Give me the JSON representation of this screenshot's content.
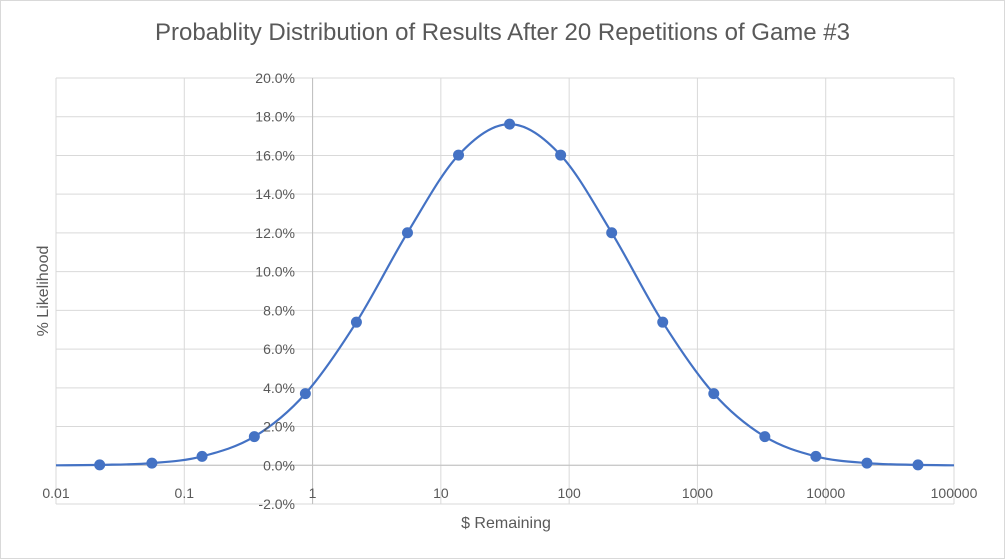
{
  "chart_data": {
    "type": "scatter",
    "title": "Probablity Distribution of Results After 20 Repetitions of Game #3",
    "xlabel": "$ Remaining",
    "ylabel": "% Likelihood",
    "x_scale": "log",
    "xlim": [
      0.01,
      100000
    ],
    "ylim": [
      -0.02,
      0.2
    ],
    "x_ticks": [
      0.01,
      0.1,
      1,
      10,
      100,
      1000,
      10000,
      100000
    ],
    "x_tick_labels": [
      "0.01",
      "0.1",
      "1",
      "10",
      "100",
      "1000",
      "10000",
      "100000"
    ],
    "y_ticks": [
      -0.02,
      0.0,
      0.02,
      0.04,
      0.06,
      0.08,
      0.1,
      0.12,
      0.14,
      0.16,
      0.18,
      0.2
    ],
    "y_tick_labels": [
      "-2.0%",
      "0.0%",
      "2.0%",
      "4.0%",
      "6.0%",
      "8.0%",
      "10.0%",
      "12.0%",
      "14.0%",
      "16.0%",
      "18.0%",
      "20.0%"
    ],
    "grid": true,
    "smooth_line": true,
    "color": "#4472c4",
    "series": [
      {
        "x": [
          0.0219,
          0.0559,
          0.1376,
          0.3516,
          0.8789,
          2.197,
          5.493,
          13.73,
          34.33,
          85.83,
          214.6,
          536.4,
          1341,
          3353,
          8382,
          20955,
          52388
        ],
        "y": [
          0.0002,
          0.0011,
          0.0046,
          0.0148,
          0.037,
          0.0739,
          0.1201,
          0.1602,
          0.1762,
          0.1602,
          0.1201,
          0.0739,
          0.037,
          0.0148,
          0.0046,
          0.0011,
          0.0002
        ]
      }
    ]
  }
}
